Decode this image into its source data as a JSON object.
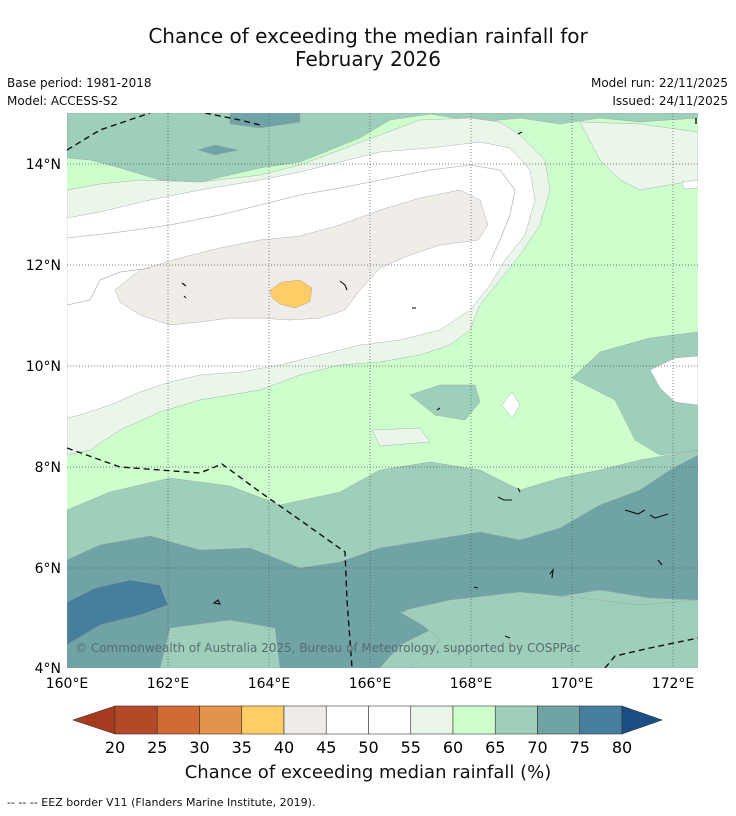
{
  "header": {
    "title_line1": "Chance of exceeding the median rainfall for",
    "title_line2": "February 2026",
    "base_period": "Base period: 1981-2018",
    "model": "Model: ACCESS-S2",
    "model_run": "Model run: 22/11/2025",
    "issued": "Issued: 24/11/2025"
  },
  "map": {
    "x_ticks": [
      "160°E",
      "162°E",
      "164°E",
      "166°E",
      "168°E",
      "170°E",
      "172°E"
    ],
    "y_ticks": [
      "14°N",
      "12°N",
      "10°N",
      "8°N",
      "6°N",
      "4°N"
    ],
    "credit": "© Commonwealth of Australia 2025, Bureau of Meteorology, supported by COSPPac",
    "colors": {
      "c60_65": "#ccffcc",
      "c55_60": "#eaf6ea",
      "c45_55": "#ffffff",
      "c40_45": "#f0ede8",
      "c35_40": "#ffcc66",
      "c65_70": "#9ecfba",
      "c70_75": "#6fa3a6",
      "c75_80": "#467f9b"
    }
  },
  "colorbar": {
    "ticks": [
      "20",
      "25",
      "30",
      "35",
      "40",
      "45",
      "50",
      "55",
      "60",
      "65",
      "70",
      "75",
      "80"
    ],
    "colors": [
      "#a83b1f",
      "#b34a25",
      "#d16b33",
      "#e3944a",
      "#ffcc66",
      "#f0ede8",
      "#ffffff",
      "#ffffff",
      "#eaf6ea",
      "#ccffcc",
      "#9ecfba",
      "#6fa3a6",
      "#467f9b",
      "#1a4f86"
    ],
    "title": "Chance of exceeding median rainfall (%)"
  },
  "footnote": "--  --  -- EEZ border V11 (Flanders Marine Institute, 2019)."
}
